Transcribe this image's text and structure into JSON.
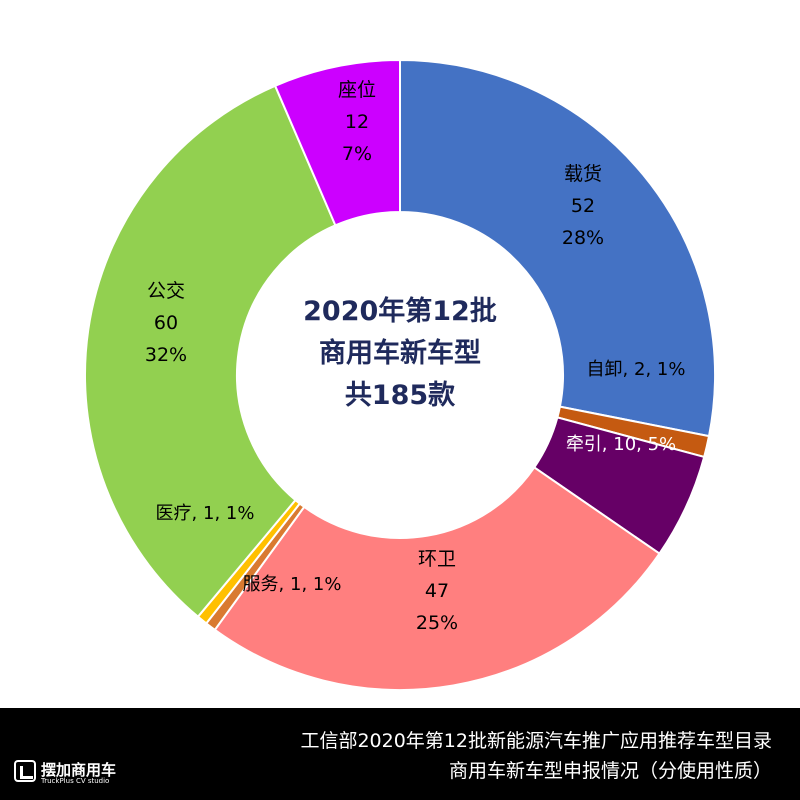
{
  "chart_data": {
    "type": "pie",
    "variant": "donut",
    "center_text": [
      "2020年第12批",
      "商用车新车型",
      "共185款"
    ],
    "slices": [
      {
        "name": "载货",
        "value": 52,
        "percent": "28%",
        "color": "#4472C4",
        "label_style": "stacked",
        "label_text_color": "#000000"
      },
      {
        "name": "自卸",
        "value": 2,
        "percent": "1%",
        "color": "#C55A11",
        "label_style": "inline",
        "label_text_color": "#000000"
      },
      {
        "name": "牵引",
        "value": 10,
        "percent": "5%",
        "color": "#660066",
        "label_style": "inline",
        "label_text_color": "#ffffff"
      },
      {
        "name": "环卫",
        "value": 47,
        "percent": "25%",
        "color": "#FF7F7F",
        "label_style": "stacked",
        "label_text_color": "#000000"
      },
      {
        "name": "服务",
        "value": 1,
        "percent": "1%",
        "color": "#D97A30",
        "label_style": "inline",
        "label_text_color": "#000000"
      },
      {
        "name": "医疗",
        "value": 1,
        "percent": "1%",
        "color": "#FFC000",
        "label_style": "inline",
        "label_text_color": "#000000"
      },
      {
        "name": "公交",
        "value": 60,
        "percent": "32%",
        "color": "#92D050",
        "label_style": "stacked",
        "label_text_color": "#000000"
      },
      {
        "name": "座位",
        "value": 12,
        "percent": "7%",
        "color": "#CC00FF",
        "label_style": "stacked",
        "label_text_color": "#000000"
      }
    ],
    "start": "12 o'clock",
    "direction": "clockwise",
    "legend": "none"
  },
  "footer": {
    "caption_line1": "工信部2020年第12批新能源汽车推广应用推荐车型目录",
    "caption_line2": "商用车新车型申报情况（分使用性质）",
    "logo_name": "摆加商用车",
    "logo_sub": "TruckPlus CV studio"
  },
  "colors": {
    "center_text": "#1F2A5C",
    "footer_bg": "#000000"
  }
}
